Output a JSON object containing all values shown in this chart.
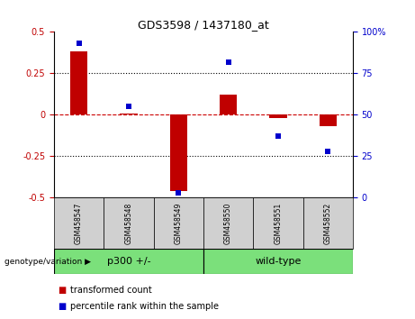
{
  "title": "GDS3598 / 1437180_at",
  "samples": [
    "GSM458547",
    "GSM458548",
    "GSM458549",
    "GSM458550",
    "GSM458551",
    "GSM458552"
  ],
  "bar_values": [
    0.38,
    0.01,
    -0.46,
    0.12,
    -0.02,
    -0.07
  ],
  "scatter_pct": [
    93,
    55,
    3,
    82,
    37,
    28
  ],
  "group1_label": "p300 +/-",
  "group1_count": 3,
  "group2_label": "wild-type",
  "group2_count": 3,
  "group_header": "genotype/variation",
  "ylim_left": [
    -0.5,
    0.5
  ],
  "ylim_right": [
    0,
    100
  ],
  "yticks_left": [
    -0.5,
    -0.25,
    0.0,
    0.25,
    0.5
  ],
  "yticks_right": [
    0,
    25,
    50,
    75,
    100
  ],
  "bar_color": "#c00000",
  "scatter_color": "#0000cc",
  "zero_line_color": "#cc0000",
  "grid_color": "#000000",
  "bg_color": "#ffffff",
  "sample_box_color": "#d0d0d0",
  "group_box_color": "#7be07b",
  "legend_labels": [
    "transformed count",
    "percentile rank within the sample"
  ],
  "bar_width": 0.35
}
